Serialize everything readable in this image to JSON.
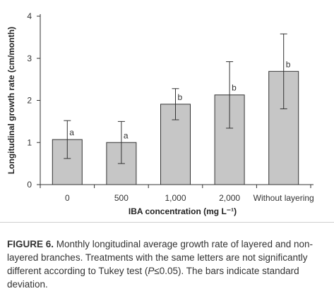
{
  "chart_data": {
    "type": "bar",
    "xlabel": "IBA concentration (mg L⁻¹)",
    "ylabel": "Longitudinal growth rate (cm/month)",
    "ylim": [
      0,
      4
    ],
    "yticks": [
      "0",
      "1",
      "2",
      "3",
      "4"
    ],
    "categories": [
      "0",
      "500",
      "1,000",
      "2,000",
      "Without layering"
    ],
    "values": [
      1.07,
      1.0,
      1.91,
      2.13,
      2.69
    ],
    "error": [
      0.45,
      0.5,
      0.37,
      0.79,
      0.89
    ],
    "letters": [
      "a",
      "a",
      "b",
      "b",
      "b"
    ],
    "grid": false,
    "bar_color": "#c6c6c6"
  },
  "caption": {
    "label": "FIGURE 6.",
    "text_1": " Monthly longitudinal average growth rate of layered and non-layered branches. Treatments with the same letters are not significantly different according to Tukey test (",
    "p_symbol": "P",
    "text_2": "≤0.05). The bars indicate standard deviation."
  }
}
